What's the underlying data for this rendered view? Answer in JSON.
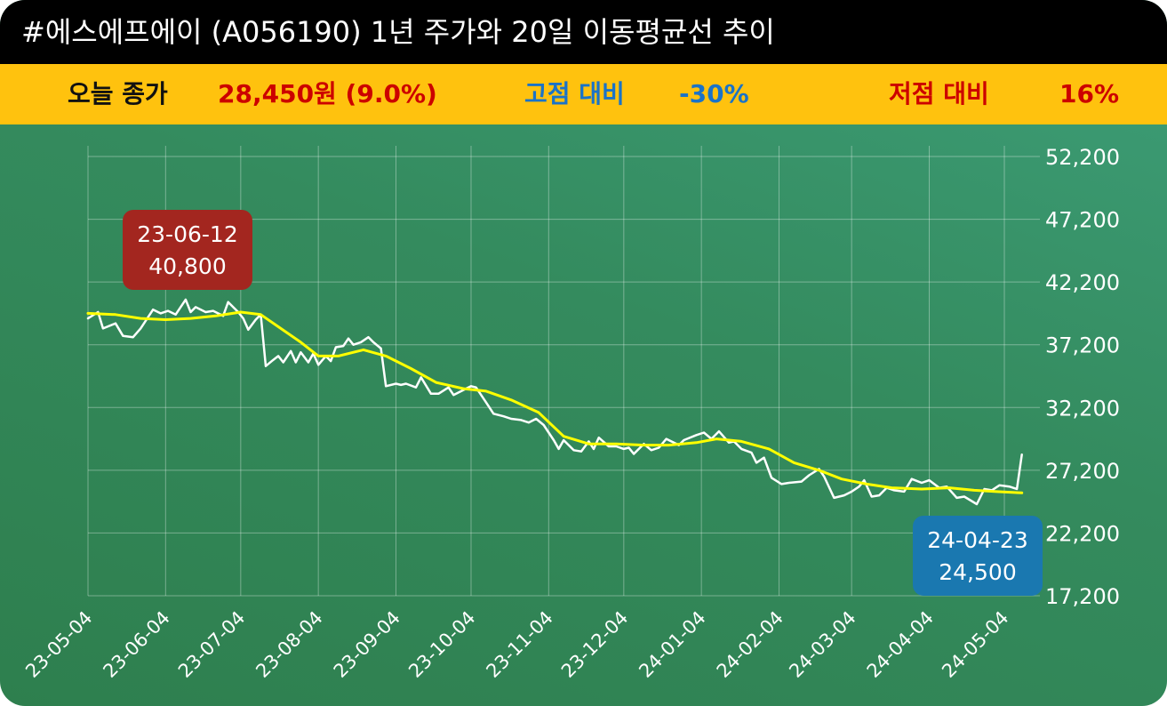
{
  "header": {
    "title": "#에스에프에이 (A056190) 1년 주가와 20일 이동평균선 추이"
  },
  "stats": {
    "close_label": "오늘 종가",
    "close_value": "28,450원 (9.0%)",
    "high_label": "고점 대비",
    "high_value": "-30%",
    "low_label": "저점 대비",
    "low_value": "16%"
  },
  "colors": {
    "title_bg": "#000000",
    "stats_bg": "#ffc20e",
    "close_value": "#cc0000",
    "high_color": "#1a73c8",
    "low_color": "#cc0000",
    "price_line": "#ffffff",
    "ma_line": "#ffff00",
    "high_box": "#a3261f",
    "low_box": "#1a78b0"
  },
  "chart_data": {
    "type": "line",
    "x_ticks": [
      "23-05-04",
      "23-06-04",
      "23-07-04",
      "23-08-04",
      "23-09-04",
      "23-10-04",
      "23-11-04",
      "23-12-04",
      "24-01-04",
      "24-02-04",
      "24-03-04",
      "24-04-04",
      "24-05-04"
    ],
    "y_ticks": [
      "52,200",
      "47,200",
      "42,200",
      "37,200",
      "32,200",
      "27,200",
      "22,200",
      "17,200"
    ],
    "ylim": [
      17200,
      52200
    ],
    "grid": true,
    "series": [
      {
        "key": "price",
        "points": [
          [
            "23-05-04",
            39300
          ],
          [
            "23-05-08",
            39800
          ],
          [
            "23-05-10",
            38500
          ],
          [
            "23-05-15",
            38900
          ],
          [
            "23-05-18",
            37900
          ],
          [
            "23-05-22",
            37800
          ],
          [
            "23-05-25",
            38500
          ],
          [
            "23-05-30",
            40000
          ],
          [
            "23-06-02",
            39700
          ],
          [
            "23-06-05",
            39900
          ],
          [
            "23-06-08",
            39600
          ],
          [
            "23-06-12",
            40800
          ],
          [
            "23-06-14",
            39800
          ],
          [
            "23-06-16",
            40200
          ],
          [
            "23-06-20",
            39800
          ],
          [
            "23-06-23",
            39900
          ],
          [
            "23-06-27",
            39500
          ],
          [
            "23-06-29",
            40600
          ],
          [
            "23-07-03",
            39800
          ],
          [
            "23-07-05",
            39300
          ],
          [
            "23-07-07",
            38400
          ],
          [
            "23-07-10",
            39200
          ],
          [
            "23-07-12",
            39600
          ],
          [
            "23-07-14",
            35500
          ],
          [
            "23-07-17",
            36000
          ],
          [
            "23-07-19",
            36300
          ],
          [
            "23-07-21",
            35800
          ],
          [
            "23-07-24",
            36700
          ],
          [
            "23-07-26",
            35800
          ],
          [
            "23-07-28",
            36600
          ],
          [
            "23-07-31",
            35800
          ],
          [
            "23-08-02",
            36500
          ],
          [
            "23-08-04",
            35600
          ],
          [
            "23-08-07",
            36300
          ],
          [
            "23-08-09",
            35900
          ],
          [
            "23-08-11",
            37000
          ],
          [
            "23-08-14",
            37100
          ],
          [
            "23-08-16",
            37700
          ],
          [
            "23-08-18",
            37200
          ],
          [
            "23-08-21",
            37400
          ],
          [
            "23-08-24",
            37800
          ],
          [
            "23-08-26",
            37400
          ],
          [
            "23-08-29",
            36900
          ],
          [
            "23-08-31",
            33900
          ],
          [
            "23-09-04",
            34100
          ],
          [
            "23-09-06",
            34000
          ],
          [
            "23-09-08",
            34100
          ],
          [
            "23-09-12",
            33800
          ],
          [
            "23-09-14",
            34600
          ],
          [
            "23-09-18",
            33300
          ],
          [
            "23-09-21",
            33300
          ],
          [
            "23-09-25",
            33800
          ],
          [
            "23-09-27",
            33200
          ],
          [
            "23-10-04",
            33900
          ],
          [
            "23-10-06",
            33800
          ],
          [
            "23-10-10",
            32600
          ],
          [
            "23-10-13",
            31700
          ],
          [
            "23-10-17",
            31500
          ],
          [
            "23-10-20",
            31300
          ],
          [
            "23-10-24",
            31200
          ],
          [
            "23-10-27",
            31000
          ],
          [
            "23-10-30",
            31300
          ],
          [
            "23-11-02",
            30800
          ],
          [
            "23-11-06",
            29600
          ],
          [
            "23-11-08",
            28900
          ],
          [
            "23-11-10",
            29600
          ],
          [
            "23-11-14",
            28800
          ],
          [
            "23-11-17",
            28700
          ],
          [
            "23-11-20",
            29500
          ],
          [
            "23-11-22",
            28900
          ],
          [
            "23-11-24",
            29800
          ],
          [
            "23-11-28",
            29100
          ],
          [
            "23-12-01",
            29100
          ],
          [
            "23-12-04",
            28900
          ],
          [
            "23-12-06",
            29000
          ],
          [
            "23-12-08",
            28500
          ],
          [
            "23-12-12",
            29300
          ],
          [
            "23-12-15",
            28800
          ],
          [
            "23-12-18",
            29000
          ],
          [
            "23-12-21",
            29700
          ],
          [
            "23-12-26",
            29200
          ],
          [
            "23-12-28",
            29600
          ],
          [
            "24-01-02",
            30000
          ],
          [
            "24-01-05",
            30200
          ],
          [
            "24-01-08",
            29700
          ],
          [
            "24-01-11",
            30300
          ],
          [
            "24-01-15",
            29400
          ],
          [
            "24-01-17",
            29500
          ],
          [
            "24-01-20",
            28900
          ],
          [
            "24-01-24",
            28600
          ],
          [
            "24-01-26",
            27800
          ],
          [
            "24-01-29",
            28200
          ],
          [
            "24-02-01",
            26600
          ],
          [
            "24-02-05",
            26100
          ],
          [
            "24-02-08",
            26200
          ],
          [
            "24-02-13",
            26300
          ],
          [
            "24-02-16",
            26800
          ],
          [
            "24-02-20",
            27300
          ],
          [
            "24-02-22",
            26700
          ],
          [
            "24-02-26",
            25000
          ],
          [
            "24-03-01",
            25200
          ],
          [
            "24-03-04",
            25500
          ],
          [
            "24-03-07",
            25900
          ],
          [
            "24-03-09",
            26400
          ],
          [
            "24-03-12",
            25100
          ],
          [
            "24-03-15",
            25200
          ],
          [
            "24-03-18",
            25800
          ],
          [
            "24-03-21",
            25600
          ],
          [
            "24-03-25",
            25500
          ],
          [
            "24-03-28",
            26500
          ],
          [
            "24-04-01",
            26200
          ],
          [
            "24-04-04",
            26400
          ],
          [
            "24-04-08",
            25800
          ],
          [
            "24-04-11",
            25900
          ],
          [
            "24-04-15",
            25000
          ],
          [
            "24-04-18",
            25100
          ],
          [
            "24-04-23",
            24500
          ],
          [
            "24-04-26",
            25700
          ],
          [
            "24-04-29",
            25600
          ],
          [
            "24-05-02",
            26000
          ],
          [
            "24-05-06",
            25900
          ],
          [
            "24-05-09",
            25700
          ],
          [
            "24-05-11",
            28450
          ]
        ]
      },
      {
        "key": "ma20",
        "points": [
          [
            "23-05-04",
            39700
          ],
          [
            "23-05-15",
            39600
          ],
          [
            "23-05-25",
            39300
          ],
          [
            "23-06-04",
            39200
          ],
          [
            "23-06-14",
            39300
          ],
          [
            "23-06-24",
            39500
          ],
          [
            "23-07-04",
            39800
          ],
          [
            "23-07-12",
            39600
          ],
          [
            "23-07-20",
            38500
          ],
          [
            "23-07-28",
            37400
          ],
          [
            "23-08-04",
            36300
          ],
          [
            "23-08-12",
            36300
          ],
          [
            "23-08-22",
            36800
          ],
          [
            "23-08-31",
            36300
          ],
          [
            "23-09-10",
            35300
          ],
          [
            "23-09-20",
            34200
          ],
          [
            "23-10-01",
            33700
          ],
          [
            "23-10-10",
            33500
          ],
          [
            "23-10-20",
            32800
          ],
          [
            "23-10-31",
            31800
          ],
          [
            "23-11-10",
            29900
          ],
          [
            "23-11-20",
            29300
          ],
          [
            "23-12-01",
            29300
          ],
          [
            "23-12-12",
            29200
          ],
          [
            "23-12-22",
            29200
          ],
          [
            "24-01-02",
            29400
          ],
          [
            "24-01-10",
            29700
          ],
          [
            "24-01-20",
            29500
          ],
          [
            "24-01-31",
            28900
          ],
          [
            "24-02-10",
            27800
          ],
          [
            "24-02-20",
            27200
          ],
          [
            "24-02-29",
            26500
          ],
          [
            "24-03-10",
            26100
          ],
          [
            "24-03-20",
            25800
          ],
          [
            "24-04-01",
            25700
          ],
          [
            "24-04-12",
            25800
          ],
          [
            "24-04-22",
            25600
          ],
          [
            "24-05-01",
            25500
          ],
          [
            "24-05-11",
            25400
          ]
        ]
      }
    ],
    "annotations": [
      {
        "date": "23-06-12",
        "value": 40800,
        "date_label": "23-06-12",
        "value_label": "40,800",
        "kind": "high"
      },
      {
        "date": "24-04-23",
        "value": 24500,
        "date_label": "24-04-23",
        "value_label": "24,500",
        "kind": "low"
      }
    ]
  }
}
